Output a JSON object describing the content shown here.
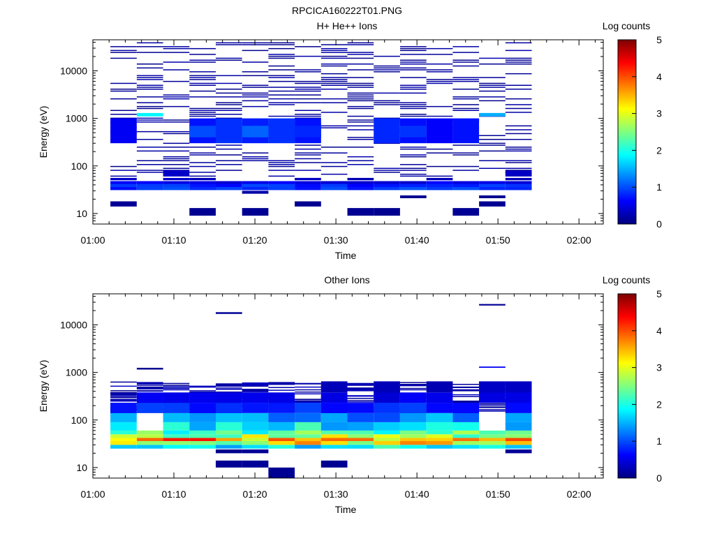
{
  "figure_title": "RPCICA160222T01.PNG",
  "colors": {
    "colormap": [
      "#00007f",
      "#0000ff",
      "#007fff",
      "#00ffff",
      "#7fff7f",
      "#ffff00",
      "#ff7f00",
      "#ff0000",
      "#7f0000"
    ]
  },
  "chart_data": [
    {
      "type": "heatmap",
      "title": "H+ He++ Ions",
      "xlabel": "Time",
      "ylabel": "Energy (eV)",
      "xlim": [
        "01:00",
        "02:03"
      ],
      "ylim": [
        6,
        45000
      ],
      "yscale": "log",
      "x_ticks": [
        "01:00",
        "01:10",
        "01:20",
        "01:30",
        "01:40",
        "01:50",
        "02:00"
      ],
      "y_ticks": [
        "10",
        "100",
        "1000",
        "10000"
      ],
      "colorbar": {
        "label": "Log counts",
        "ticks": [
          "0",
          "1",
          "2",
          "3",
          "4",
          "5"
        ],
        "range": [
          0,
          5
        ]
      },
      "time_columns": [
        "01:02",
        "01:05",
        "01:09",
        "01:12",
        "01:15",
        "01:18",
        "01:22",
        "01:25",
        "01:28",
        "01:31",
        "01:35",
        "01:38",
        "01:41",
        "01:44",
        "01:47",
        "01:51"
      ],
      "column_edges": [
        "01:02:10",
        "01:05:25",
        "01:08:40",
        "01:11:55",
        "01:15:10",
        "01:18:25",
        "01:21:40",
        "01:24:55",
        "01:28:10",
        "01:31:25",
        "01:34:40",
        "01:37:55",
        "01:41:10",
        "01:44:25",
        "01:47:40",
        "01:50:55",
        "01:54:10"
      ],
      "seed": 7,
      "bands": [
        {
          "e_lo": 9,
          "e_hi": 13,
          "level": 0.1,
          "columns": [
            3,
            9,
            10,
            13,
            5
          ]
        },
        {
          "e_lo": 14,
          "e_hi": 18,
          "level": 0.1,
          "columns": [
            0,
            7,
            14
          ]
        },
        {
          "e_lo": 21,
          "e_hi": 24,
          "level": 0.1,
          "columns": [
            11,
            14
          ]
        },
        {
          "e_lo": 26,
          "e_hi": 30,
          "level": 0.2,
          "columns": [
            5
          ]
        },
        {
          "e_lo": 31,
          "e_hi": 36,
          "level": 0.9,
          "columns": "all"
        },
        {
          "e_lo": 36,
          "e_hi": 42,
          "level": 0.8,
          "columns": "all"
        },
        {
          "e_lo": 42,
          "e_hi": 48,
          "level": 0.5,
          "columns": "all"
        },
        {
          "e_lo": 50,
          "e_hi": 56,
          "level": 0.3,
          "columns": [
            0,
            2,
            3,
            7,
            9,
            12,
            15
          ]
        },
        {
          "e_lo": 60,
          "e_hi": 80,
          "level": 0.3,
          "columns": [
            2,
            15
          ]
        },
        {
          "e_lo": 300,
          "e_hi": 1000,
          "level": 0.7,
          "columns": [
            0,
            3,
            4,
            5,
            6,
            7,
            10,
            11,
            12,
            13
          ]
        },
        {
          "e_lo": 400,
          "e_hi": 700,
          "level": 1.0,
          "columns": [
            3,
            5,
            7,
            11
          ]
        },
        {
          "e_lo": 1100,
          "e_hi": 1300,
          "level": 1.6,
          "columns": [
            1,
            14
          ]
        }
      ],
      "sparse_lines": {
        "e_lo": 60,
        "e_hi": 42000,
        "level": 0.2,
        "density": 0.32
      }
    },
    {
      "type": "heatmap",
      "title": "Other Ions",
      "xlabel": "Time",
      "ylabel": "Energy (eV)",
      "xlim": [
        "01:00",
        "02:03"
      ],
      "ylim": [
        6,
        45000
      ],
      "yscale": "log",
      "x_ticks": [
        "01:00",
        "01:10",
        "01:20",
        "01:30",
        "01:40",
        "01:50",
        "02:00"
      ],
      "y_ticks": [
        "10",
        "100",
        "1000",
        "10000"
      ],
      "colorbar": {
        "label": "Log counts",
        "ticks": [
          "0",
          "1",
          "2",
          "3",
          "4",
          "5"
        ],
        "range": [
          0,
          5
        ]
      },
      "time_columns": [
        "01:02",
        "01:05",
        "01:09",
        "01:12",
        "01:15",
        "01:18",
        "01:22",
        "01:25",
        "01:28",
        "01:31",
        "01:35",
        "01:38",
        "01:41",
        "01:44",
        "01:47",
        "01:51"
      ],
      "column_edges": [
        "01:02:10",
        "01:05:25",
        "01:08:40",
        "01:11:55",
        "01:15:10",
        "01:18:25",
        "01:21:40",
        "01:24:55",
        "01:28:10",
        "01:31:25",
        "01:34:40",
        "01:37:55",
        "01:41:10",
        "01:44:25",
        "01:47:40",
        "01:50:55",
        "01:54:10"
      ],
      "seed": 23,
      "bands": [
        {
          "e_lo": 6,
          "e_hi": 10,
          "level": 0.1,
          "columns": [
            6
          ]
        },
        {
          "e_lo": 10,
          "e_hi": 14,
          "level": 0.1,
          "columns": [
            4,
            5,
            8
          ]
        },
        {
          "e_lo": 20,
          "e_hi": 24,
          "level": 0.1,
          "columns": [
            4,
            5,
            15
          ]
        },
        {
          "e_lo": 25,
          "e_hi": 30,
          "level": 1.8,
          "columns": "all"
        },
        {
          "e_lo": 30,
          "e_hi": 36,
          "level": 3.0,
          "columns": "all"
        },
        {
          "e_lo": 36,
          "e_hi": 42,
          "level": 3.5,
          "columns": "all"
        },
        {
          "e_lo": 42,
          "e_hi": 50,
          "level": 2.8,
          "columns": "all"
        },
        {
          "e_lo": 50,
          "e_hi": 60,
          "level": 2.2,
          "columns": "all"
        },
        {
          "e_lo": 60,
          "e_hi": 90,
          "level": 1.8,
          "columns": "all"
        },
        {
          "e_lo": 90,
          "e_hi": 140,
          "level": 1.3,
          "columns": [
            0,
            2,
            3,
            4,
            5,
            6,
            7,
            8,
            9,
            10,
            11,
            12,
            13,
            15
          ]
        },
        {
          "e_lo": 140,
          "e_hi": 230,
          "level": 0.8,
          "columns": [
            0,
            1,
            2,
            3,
            4,
            5,
            6,
            7,
            8,
            9,
            10,
            11,
            12,
            13,
            14,
            15
          ]
        },
        {
          "e_lo": 230,
          "e_hi": 380,
          "level": 0.5,
          "columns": [
            1,
            2,
            3,
            4,
            5,
            6,
            8,
            10,
            11,
            12,
            14,
            15
          ]
        },
        {
          "e_lo": 380,
          "e_hi": 650,
          "level": 0.3,
          "columns": [
            8,
            10,
            12,
            14,
            15
          ]
        },
        {
          "e_lo": 1150,
          "e_hi": 1250,
          "level": 0.1,
          "columns": [
            1
          ]
        },
        {
          "e_lo": 1250,
          "e_hi": 1330,
          "level": 0.5,
          "columns": [
            14
          ]
        },
        {
          "e_lo": 17000,
          "e_hi": 18500,
          "level": 0.1,
          "columns": [
            4
          ]
        },
        {
          "e_lo": 25500,
          "e_hi": 27500,
          "level": 0.1,
          "columns": [
            14
          ]
        }
      ],
      "sparse_lines": {
        "e_lo": 140,
        "e_hi": 650,
        "level": 0.3,
        "density": 0.25
      },
      "holes": [
        {
          "col": 1,
          "e_lo": 85,
          "e_hi": 105
        },
        {
          "col": 14,
          "e_lo": 60,
          "e_hi": 150
        }
      ]
    }
  ]
}
